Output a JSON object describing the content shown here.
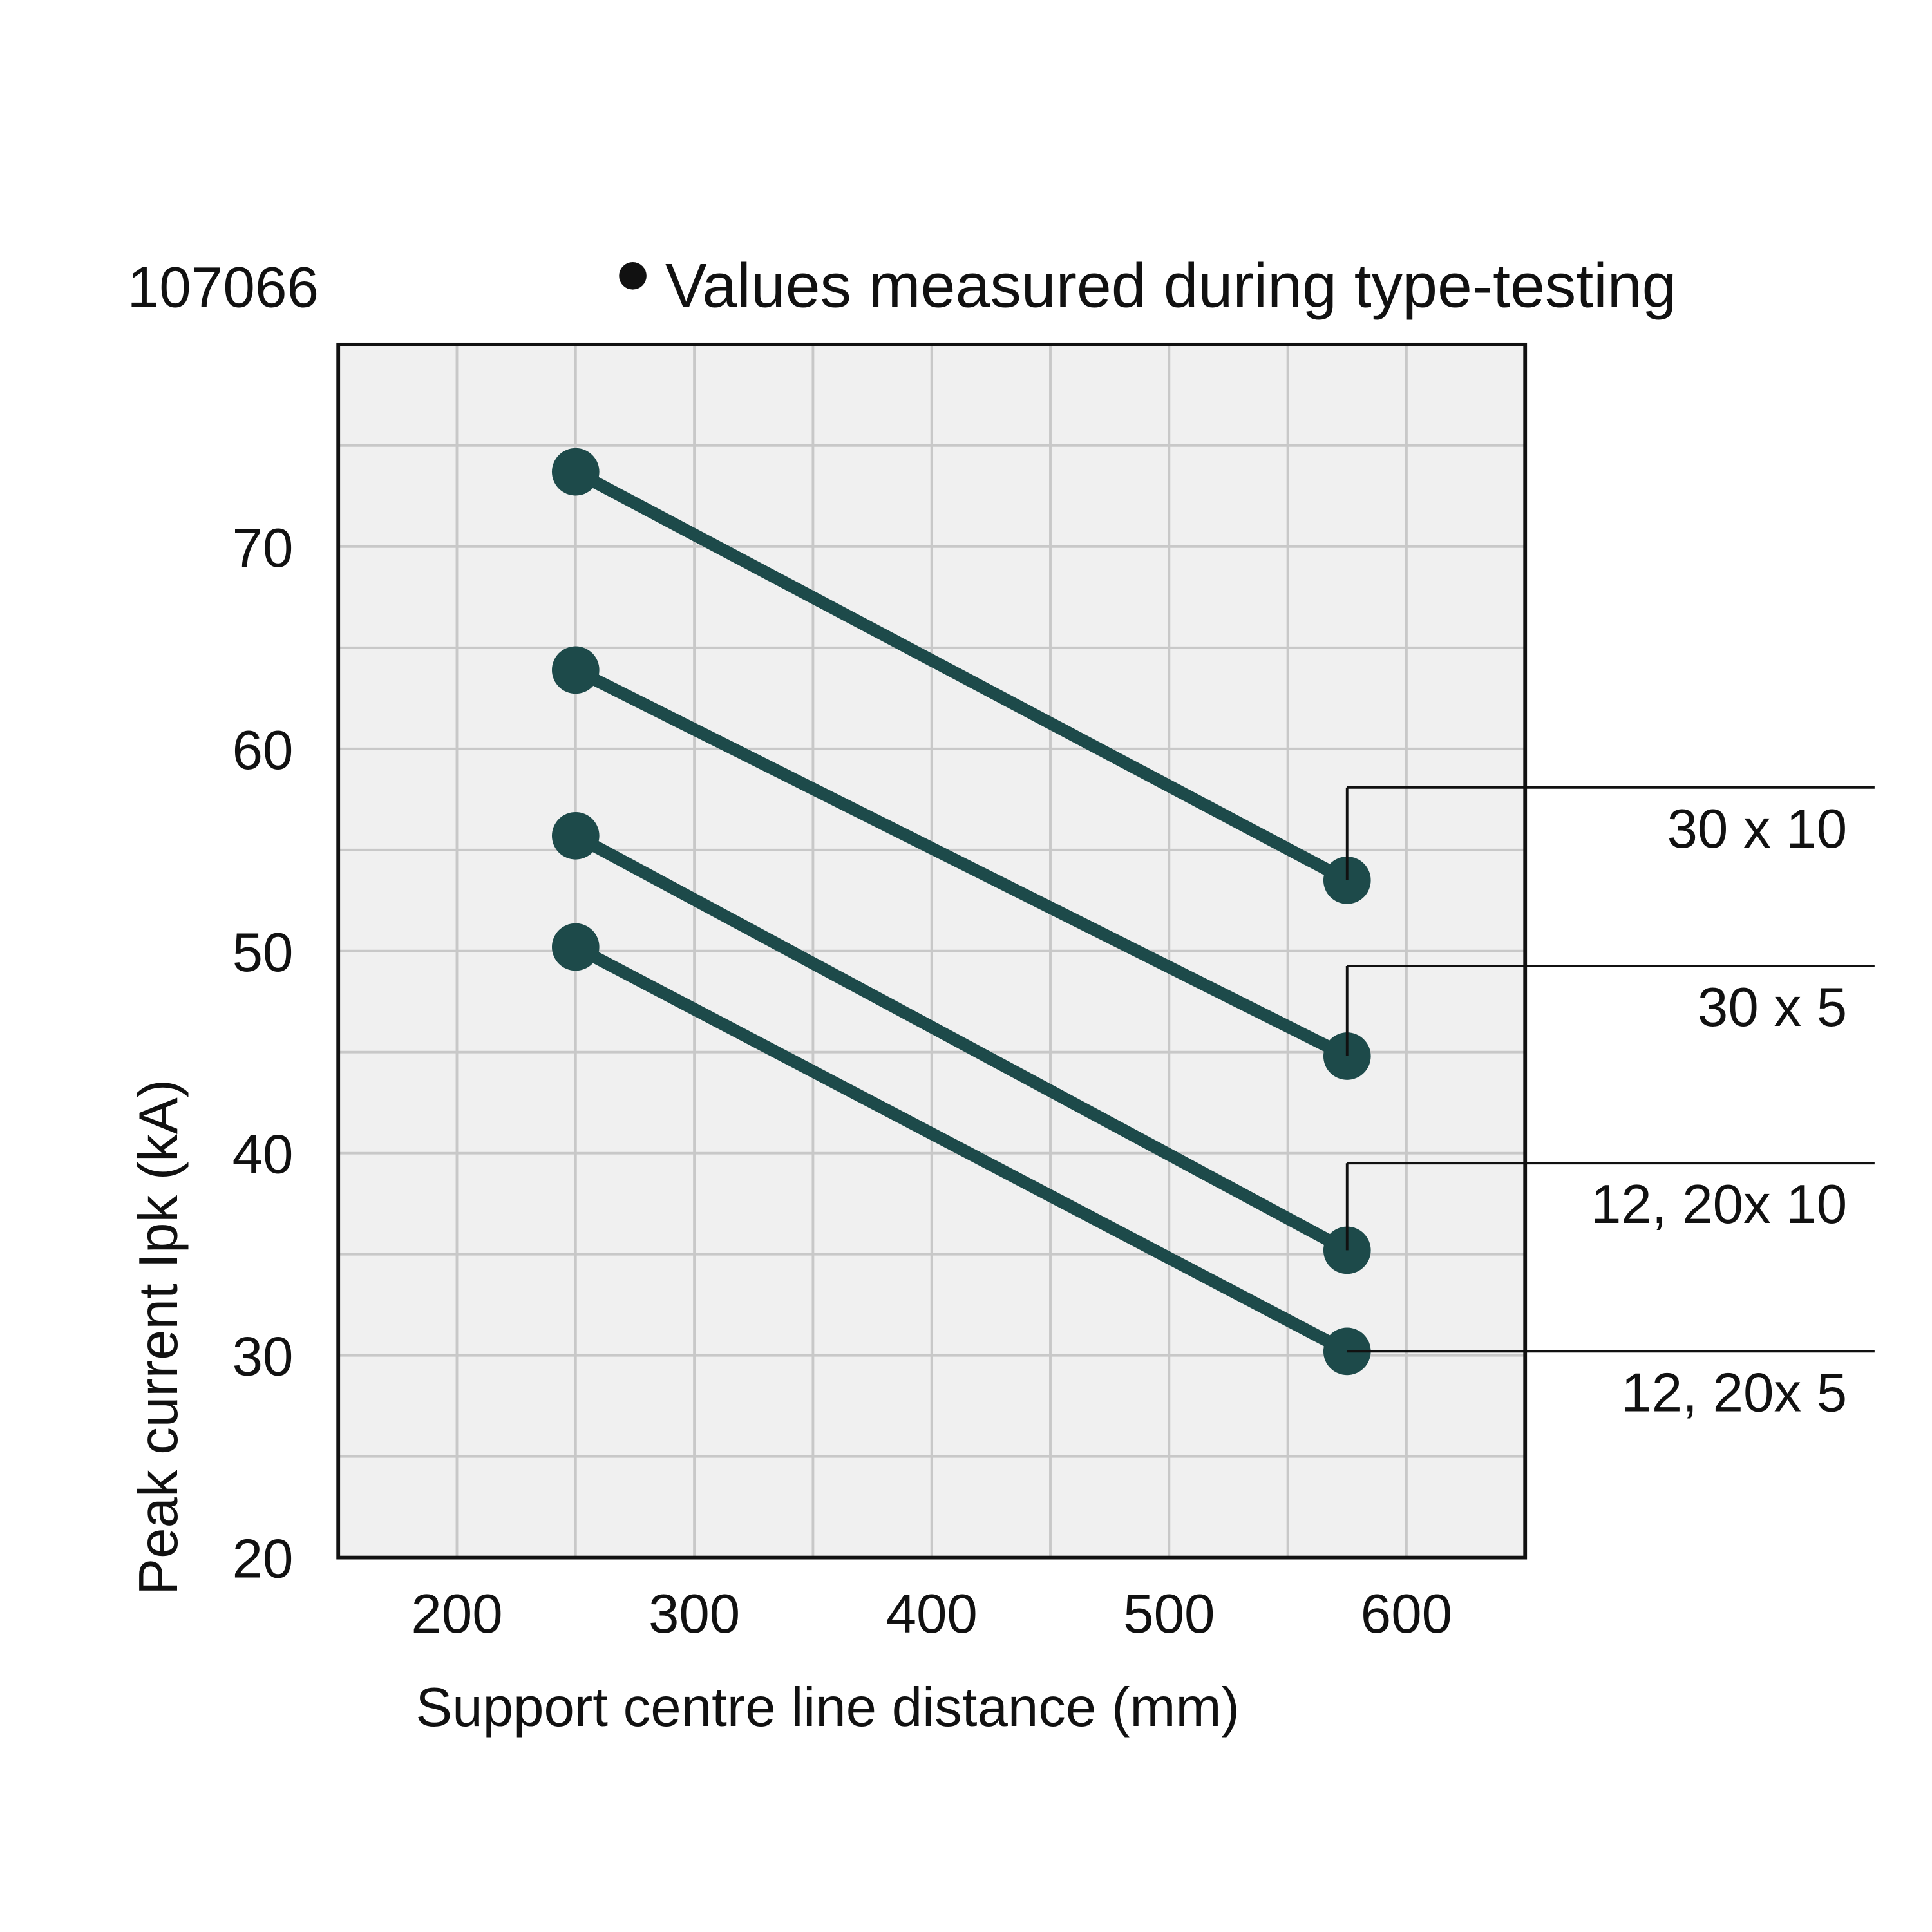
{
  "chart_data": {
    "type": "line",
    "figure_id": "107066",
    "legend": "Values measured during type-testing",
    "xlabel": "Support centre line distance (mm)",
    "ylabel": "Peak current Ipk (kA)",
    "xlim": [
      150,
      650
    ],
    "ylim": [
      20,
      80
    ],
    "x_ticks": [
      200,
      300,
      400,
      500,
      600
    ],
    "y_ticks": [
      20,
      30,
      40,
      50,
      60,
      70
    ],
    "x_grid_step": 50,
    "y_grid_step": 5,
    "grid": true,
    "colors": {
      "series": "#1d4a4a",
      "plot_bg": "#f0f0f0",
      "grid": "#c8c8c8"
    },
    "series": [
      {
        "name": "30 x 10",
        "x": [
          250,
          575
        ],
        "y": [
          73.7,
          53.5
        ]
      },
      {
        "name": "30 x 5",
        "x": [
          250,
          575
        ],
        "y": [
          63.9,
          44.8
        ]
      },
      {
        "name": "12, 20x 10",
        "x": [
          250,
          575
        ],
        "y": [
          55.7,
          35.2
        ]
      },
      {
        "name": "12, 20x 5",
        "x": [
          250,
          575
        ],
        "y": [
          50.2,
          30.2
        ]
      }
    ]
  }
}
